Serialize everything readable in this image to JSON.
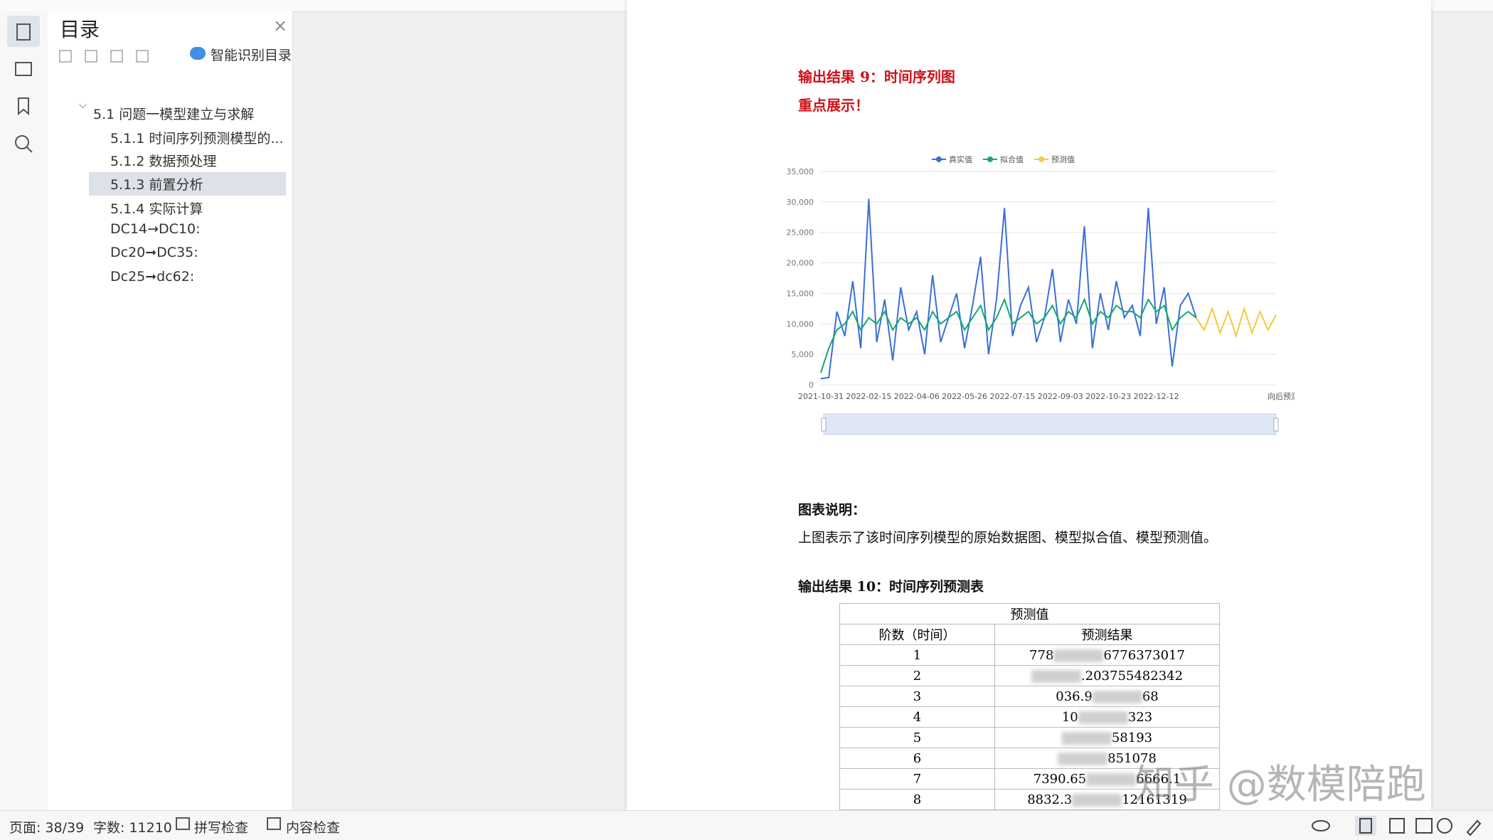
{
  "sidebar": {
    "title": "目录",
    "smart": "智能识别目录",
    "toc": [
      "5.1 问题一模型建立与求解",
      "5.1.1  时间序列预测模型的...",
      "5.1.2  数据预处理",
      "5.1.3  前置分析",
      "5.1.4  实际计算",
      "DC14→DC10:",
      "Dc20➞DC35:",
      "Dc25➞dc62:"
    ]
  },
  "document": {
    "heading1": "输出结果 9：时间序列图",
    "emphasis": "重点展示！",
    "caption_title": "图表说明：",
    "caption_text": "上图表示了该时间序列模型的原始数据图、模型拟合值、模型预测值。",
    "heading2": "输出结果 10：时间序列预测表",
    "table": {
      "title": "预测值",
      "headers": [
        "阶数（时间）",
        "预测结果"
      ],
      "rows": [
        [
          "1",
          [
            "778",
            "6776373017"
          ]
        ],
        [
          "2",
          [
            ".203755482342"
          ]
        ],
        [
          "3",
          [
            "036.9",
            "68"
          ]
        ],
        [
          "4",
          [
            "10",
            "323"
          ]
        ],
        [
          "5",
          [
            "58193"
          ]
        ],
        [
          "6",
          [
            "851078"
          ]
        ],
        [
          "7",
          [
            "7390.65",
            "6666.1"
          ]
        ],
        [
          "8",
          [
            "8832.3",
            "12161319"
          ]
        ]
      ]
    }
  },
  "chart_data": {
    "type": "line",
    "categories": [
      "2021-10-31",
      null,
      null,
      null,
      null,
      null,
      "2022-02-15",
      null,
      null,
      null,
      null,
      null,
      "2022-04-06",
      null,
      null,
      null,
      null,
      null,
      "2022-05-26",
      null,
      null,
      null,
      null,
      null,
      "2022-07-15",
      null,
      null,
      null,
      null,
      null,
      "2022-09-03",
      null,
      null,
      null,
      null,
      null,
      "2022-10-23",
      null,
      null,
      null,
      null,
      null,
      "2022-12-12",
      null,
      null,
      null,
      null,
      null,
      null,
      null,
      null,
      null,
      null,
      null,
      null,
      null,
      null,
      "向后预测"
    ],
    "series": [
      {
        "name": "真实值",
        "color": "#3a6fd8",
        "values": [
          1000,
          1200,
          12000,
          8000,
          17000,
          6000,
          30500,
          7000,
          14000,
          4000,
          16000,
          9000,
          12000,
          5000,
          18000,
          7000,
          11000,
          15000,
          6000,
          13000,
          21000,
          5000,
          14000,
          29000,
          8000,
          13000,
          16000,
          7000,
          11000,
          19000,
          7000,
          14000,
          10000,
          26000,
          6000,
          15000,
          9000,
          17000,
          11000,
          13000,
          8000,
          29000,
          10000,
          16000,
          3000,
          13000,
          15000,
          11000,
          null,
          null,
          null,
          null,
          null,
          null,
          null,
          null,
          null,
          null
        ]
      },
      {
        "name": "拟合值",
        "color": "#17a86b",
        "values": [
          2000,
          6000,
          9000,
          10000,
          12000,
          9000,
          11000,
          10000,
          12000,
          9000,
          11000,
          10000,
          11000,
          9000,
          12000,
          10000,
          11000,
          12000,
          9000,
          11000,
          13000,
          9000,
          11000,
          14000,
          10000,
          11000,
          12000,
          10000,
          11000,
          13000,
          10000,
          12000,
          11000,
          14000,
          10000,
          12000,
          11000,
          13000,
          12000,
          12000,
          11000,
          14000,
          12000,
          13000,
          9000,
          11000,
          12000,
          11000,
          null,
          null,
          null,
          null,
          null,
          null,
          null,
          null,
          null,
          null
        ]
      },
      {
        "name": "预测值",
        "color": "#f5c93a",
        "values": [
          null,
          null,
          null,
          null,
          null,
          null,
          null,
          null,
          null,
          null,
          null,
          null,
          null,
          null,
          null,
          null,
          null,
          null,
          null,
          null,
          null,
          null,
          null,
          null,
          null,
          null,
          null,
          null,
          null,
          null,
          null,
          null,
          null,
          null,
          null,
          null,
          null,
          null,
          null,
          null,
          null,
          null,
          null,
          null,
          null,
          null,
          null,
          11000,
          9000,
          12500,
          8500,
          12000,
          8000,
          12500,
          8500,
          12000,
          9000,
          11500
        ]
      }
    ],
    "ylim": [
      0,
      35000
    ],
    "yticks": [
      0,
      {
        "value": 5000,
        "label": "5,000"
      },
      {
        "value": 10000,
        "label": "10,000"
      },
      {
        "value": 15000,
        "label": "15,000"
      },
      {
        "value": 20000,
        "label": "20,000"
      },
      {
        "value": 25000,
        "label": "25,000"
      },
      {
        "value": 30000,
        "label": "30,000"
      },
      {
        "value": 35000,
        "label": "35,000"
      }
    ],
    "grid": true
  },
  "status": {
    "page": "页面: 38/39",
    "words": "字数: 11210",
    "spell": "拼写检查",
    "content": "内容检查"
  },
  "watermark": "知乎 @数模陪跑"
}
